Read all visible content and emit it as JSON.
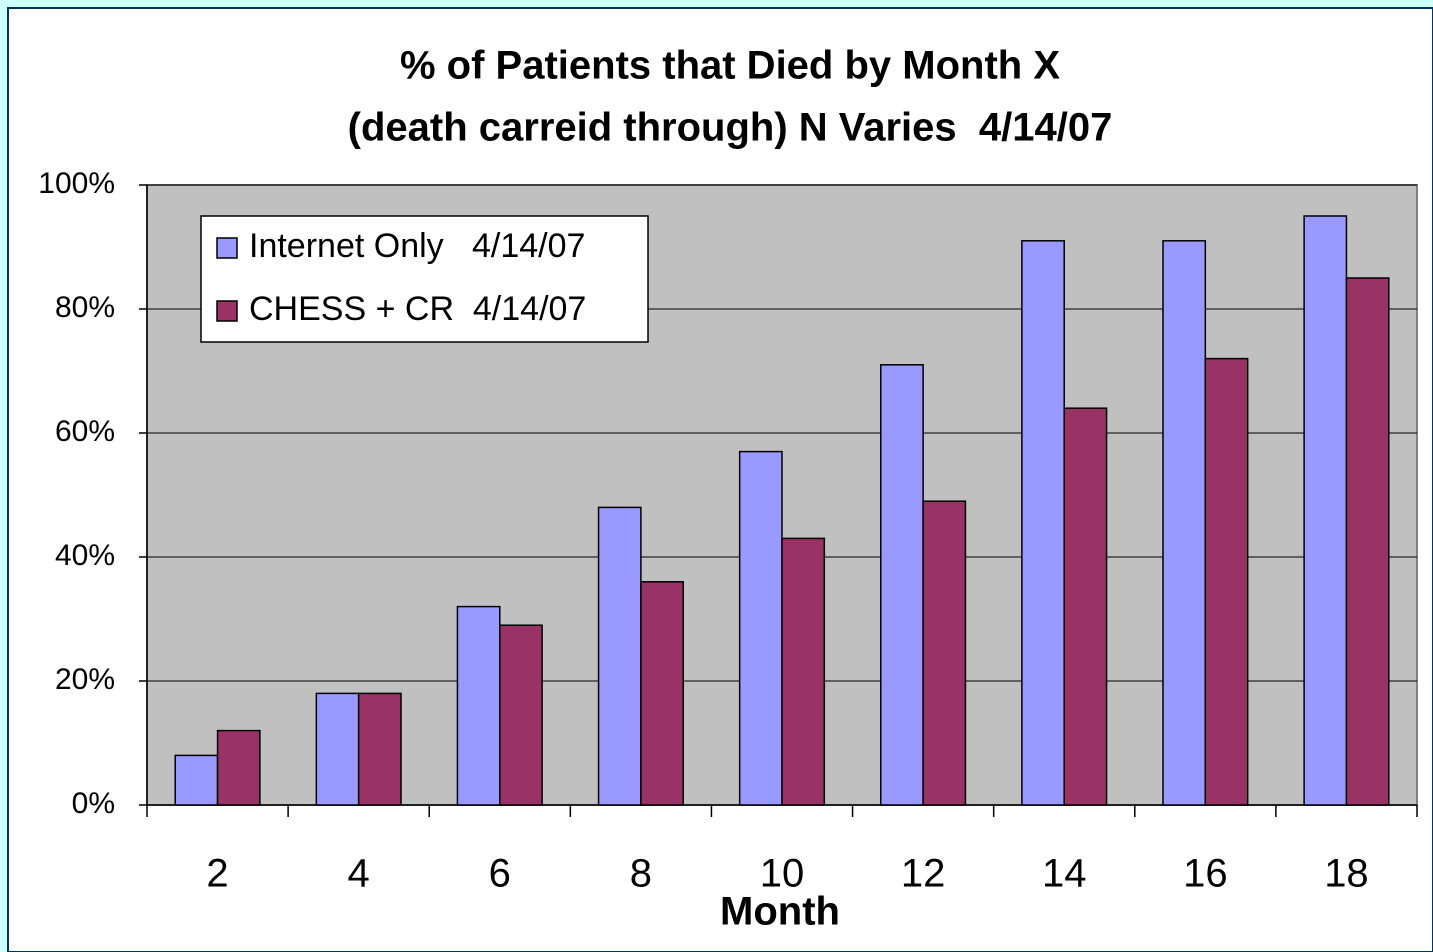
{
  "chart_data": {
    "type": "bar",
    "title": [
      "% of Patients that Died by Month X",
      "(death carreid through) N Varies  4/14/07"
    ],
    "xlabel": "Month",
    "categories": [
      "2",
      "4",
      "6",
      "8",
      "10",
      "12",
      "14",
      "16",
      "18"
    ],
    "series": [
      {
        "name": "Internet Only   4/14/07",
        "color": "#9999ff",
        "values": [
          8,
          18,
          32,
          48,
          57,
          71,
          91,
          91,
          95
        ]
      },
      {
        "name": "CHESS + CR  4/14/07",
        "color": "#993366",
        "values": [
          12,
          18,
          29,
          36,
          43,
          49,
          64,
          72,
          85
        ]
      }
    ],
    "ylim": [
      0,
      100
    ],
    "yticks": [
      {
        "value": 0,
        "label": "0%"
      },
      {
        "value": 20,
        "label": "20%"
      },
      {
        "value": 40,
        "label": "40%"
      },
      {
        "value": 60,
        "label": "60%"
      },
      {
        "value": 80,
        "label": "80%"
      },
      {
        "value": 100,
        "label": "100%"
      }
    ],
    "grid": true,
    "legend": "upper left"
  }
}
